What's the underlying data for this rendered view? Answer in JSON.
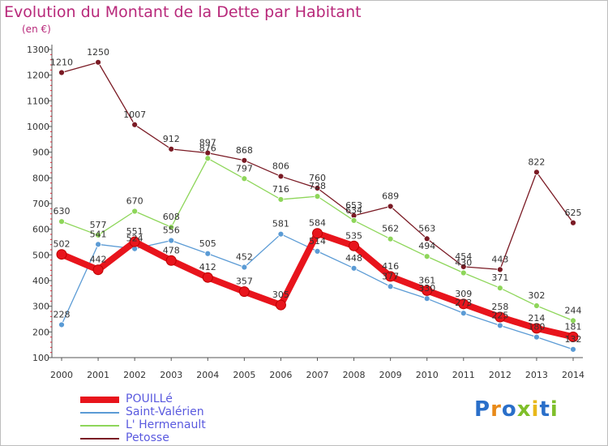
{
  "title": "Evolution du Montant de la Dette par Habitant",
  "unit": "(en €)",
  "logo": "Proxiti",
  "chart_data": {
    "type": "line",
    "x": [
      2000,
      2001,
      2002,
      2003,
      2004,
      2005,
      2006,
      2007,
      2008,
      2009,
      2010,
      2011,
      2012,
      2013,
      2014
    ],
    "ylim": [
      100,
      1300
    ],
    "yticks": [
      100,
      200,
      300,
      400,
      500,
      600,
      700,
      800,
      900,
      1000,
      1100,
      1200,
      1300
    ],
    "grid": false,
    "legend": "bottom-left",
    "series": [
      {
        "name": "POUILLé",
        "color": "#e8141c",
        "values": [
          502,
          442,
          551,
          478,
          412,
          357,
          305,
          584,
          535,
          416,
          361,
          309,
          258,
          214,
          181
        ]
      },
      {
        "name": "Saint-Valérien",
        "color": "#5b9bd5",
        "values": [
          228,
          541,
          524,
          556,
          505,
          452,
          581,
          514,
          448,
          377,
          330,
          273,
          225,
          180,
          132
        ]
      },
      {
        "name": "L' Hermenault",
        "color": "#8ed65a",
        "values": [
          630,
          577,
          670,
          608,
          876,
          797,
          716,
          728,
          634,
          562,
          494,
          430,
          371,
          302,
          244
        ]
      },
      {
        "name": "Petosse",
        "color": "#7a1a24",
        "values": [
          1210,
          1250,
          1007,
          912,
          897,
          868,
          806,
          760,
          653,
          689,
          563,
          454,
          443,
          822,
          625
        ]
      }
    ]
  }
}
